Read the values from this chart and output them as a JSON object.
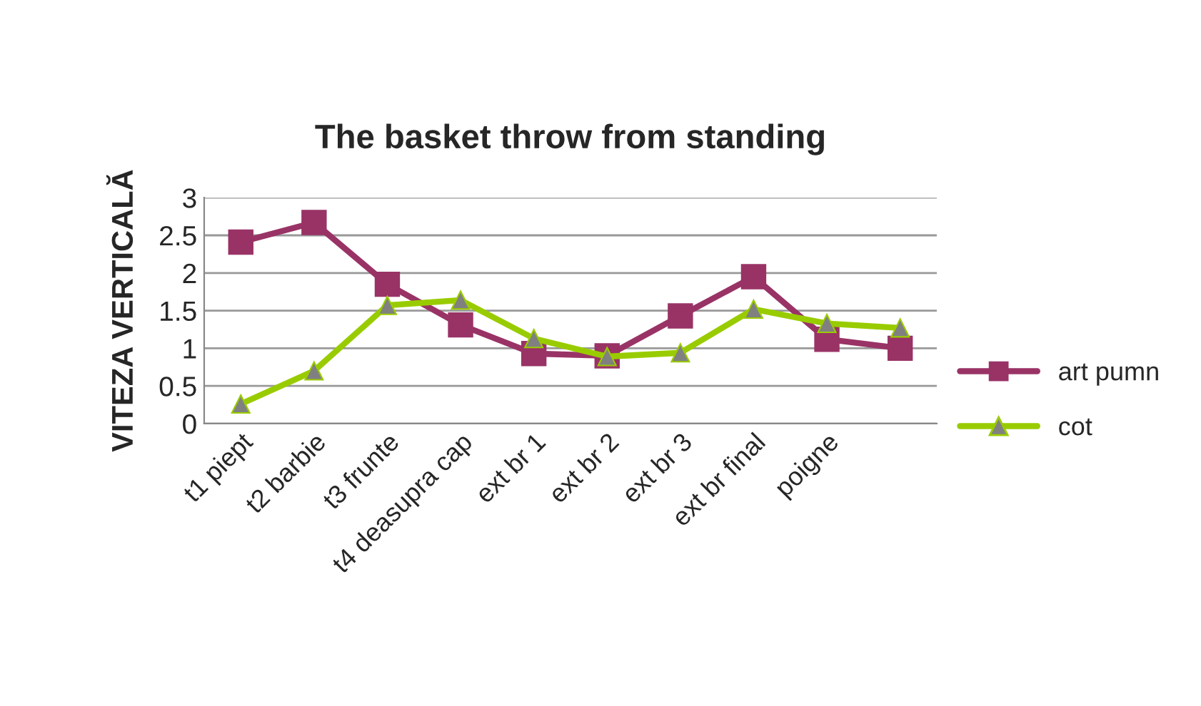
{
  "chart_data": {
    "type": "line",
    "title": "The basket throw from standing",
    "ylabel": "VITEZA VERTICALĂ",
    "categories": [
      "t1 piept",
      "t2 barbie",
      "t3 frunte",
      "t4 deasupra cap",
      "ext br 1",
      "ext br 2",
      "ext br 3",
      "ext br final",
      "poigne",
      null
    ],
    "series": [
      {
        "name": "art pumn",
        "color": "#993366",
        "marker": "square",
        "values": [
          2.41,
          2.67,
          1.85,
          1.31,
          0.93,
          0.9,
          1.43,
          1.95,
          1.12,
          1.0
        ]
      },
      {
        "name": "cot",
        "color": "#99cc00",
        "marker": "triangle",
        "values": [
          0.26,
          0.7,
          1.57,
          1.64,
          1.13,
          0.89,
          0.94,
          1.52,
          1.33,
          1.27
        ]
      }
    ],
    "ylim": [
      0,
      3
    ],
    "yticks": [
      0,
      0.5,
      1,
      1.5,
      2,
      2.5,
      3
    ],
    "grid": "y",
    "legend": "right",
    "line_style": "solid"
  }
}
